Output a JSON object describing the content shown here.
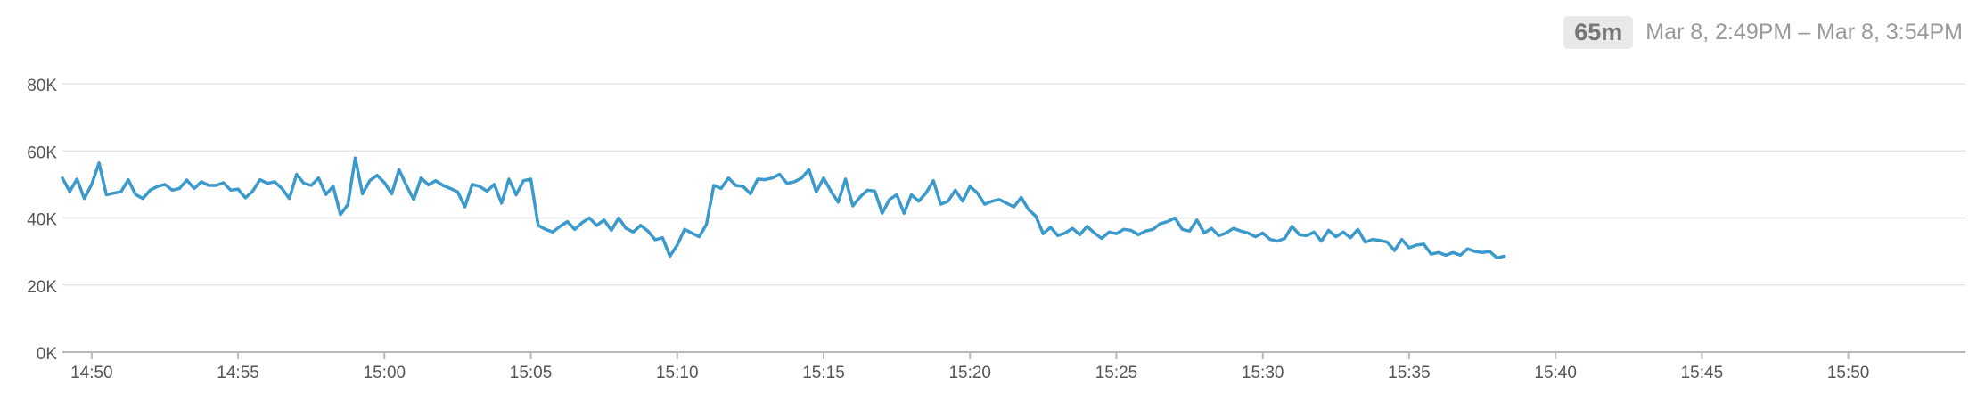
{
  "header": {
    "duration_label": "65m",
    "range_label": "Mar 8, 2:49PM – Mar 8, 3:54PM"
  },
  "colors": {
    "line": "#3b9acb",
    "grid": "#e4e4e4",
    "axis": "#b8b8b8",
    "text": "#555555"
  },
  "chart_data": {
    "type": "line",
    "title": "",
    "xlabel": "",
    "ylabel": "",
    "x_ticks": [
      "14:50",
      "14:55",
      "15:00",
      "15:05",
      "15:10",
      "15:15",
      "15:20",
      "15:25",
      "15:30",
      "15:35",
      "15:40",
      "15:45",
      "15:50"
    ],
    "y_ticks": [
      "0K",
      "20K",
      "40K",
      "60K",
      "80K"
    ],
    "ylim": [
      0,
      80000
    ],
    "x_range_minutes": [
      "14:49",
      "15:54"
    ],
    "grid": true,
    "legend": "none",
    "series": [
      {
        "points": [
          [
            "14:49:00",
            51900
          ],
          [
            "14:49:15",
            47900
          ],
          [
            "14:49:30",
            51600
          ],
          [
            "14:49:45",
            45800
          ],
          [
            "14:50:00",
            50000
          ],
          [
            "14:50:15",
            56400
          ],
          [
            "14:50:30",
            46900
          ],
          [
            "14:50:45",
            47400
          ],
          [
            "14:51:00",
            47800
          ],
          [
            "14:51:15",
            51400
          ],
          [
            "14:51:30",
            47000
          ],
          [
            "14:51:45",
            45800
          ],
          [
            "14:52:00",
            48300
          ],
          [
            "14:52:15",
            49400
          ],
          [
            "14:52:30",
            50000
          ],
          [
            "14:52:45",
            48300
          ],
          [
            "14:53:00",
            48800
          ],
          [
            "14:53:15",
            51300
          ],
          [
            "14:53:30",
            48800
          ],
          [
            "14:53:45",
            50800
          ],
          [
            "14:54:00",
            49700
          ],
          [
            "14:54:15",
            49700
          ],
          [
            "14:54:30",
            50500
          ],
          [
            "14:54:45",
            48300
          ],
          [
            "14:55:00",
            48600
          ],
          [
            "14:55:15",
            46000
          ],
          [
            "14:55:30",
            48000
          ],
          [
            "14:55:45",
            51400
          ],
          [
            "14:56:00",
            50300
          ],
          [
            "14:56:15",
            50800
          ],
          [
            "14:56:30",
            48800
          ],
          [
            "14:56:45",
            45800
          ],
          [
            "14:57:00",
            53000
          ],
          [
            "14:57:15",
            50300
          ],
          [
            "14:57:30",
            49700
          ],
          [
            "14:57:45",
            51900
          ],
          [
            "14:58:00",
            47000
          ],
          [
            "14:58:15",
            49400
          ],
          [
            "14:58:30",
            41000
          ],
          [
            "14:58:45",
            44000
          ],
          [
            "14:59:00",
            57900
          ],
          [
            "14:59:15",
            47200
          ],
          [
            "14:59:30",
            51100
          ],
          [
            "14:59:45",
            52700
          ],
          [
            "15:00:00",
            50500
          ],
          [
            "15:00:15",
            47200
          ],
          [
            "15:00:30",
            54400
          ],
          [
            "15:00:45",
            49700
          ],
          [
            "15:01:00",
            45500
          ],
          [
            "15:01:15",
            51900
          ],
          [
            "15:01:30",
            49900
          ],
          [
            "15:01:45",
            51100
          ],
          [
            "15:02:00",
            49700
          ],
          [
            "15:02:15",
            48800
          ],
          [
            "15:02:30",
            47800
          ],
          [
            "15:02:45",
            43300
          ],
          [
            "15:03:00",
            50000
          ],
          [
            "15:03:15",
            49400
          ],
          [
            "15:03:30",
            48000
          ],
          [
            "15:03:45",
            50000
          ],
          [
            "15:04:00",
            44400
          ],
          [
            "15:04:15",
            51600
          ],
          [
            "15:04:30",
            46900
          ],
          [
            "15:04:45",
            51100
          ],
          [
            "15:05:00",
            51600
          ],
          [
            "15:05:15",
            37800
          ],
          [
            "15:05:30",
            36600
          ],
          [
            "15:05:45",
            35800
          ],
          [
            "15:06:00",
            37500
          ],
          [
            "15:06:15",
            38900
          ],
          [
            "15:06:30",
            36600
          ],
          [
            "15:06:45",
            38600
          ],
          [
            "15:07:00",
            40000
          ],
          [
            "15:07:15",
            37800
          ],
          [
            "15:07:30",
            39400
          ],
          [
            "15:07:45",
            36300
          ],
          [
            "15:08:00",
            40000
          ],
          [
            "15:08:15",
            36900
          ],
          [
            "15:08:30",
            35800
          ],
          [
            "15:08:45",
            37800
          ],
          [
            "15:09:00",
            36100
          ],
          [
            "15:09:15",
            33500
          ],
          [
            "15:09:30",
            34100
          ],
          [
            "15:09:45",
            28600
          ],
          [
            "15:10:00",
            31900
          ],
          [
            "15:10:15",
            36600
          ],
          [
            "15:10:30",
            35500
          ],
          [
            "15:10:45",
            34400
          ],
          [
            "15:11:00",
            38100
          ],
          [
            "15:11:15",
            49700
          ],
          [
            "15:11:30",
            48800
          ],
          [
            "15:11:45",
            51900
          ],
          [
            "15:12:00",
            49700
          ],
          [
            "15:12:15",
            49400
          ],
          [
            "15:12:30",
            47200
          ],
          [
            "15:12:45",
            51600
          ],
          [
            "15:13:00",
            51400
          ],
          [
            "15:13:15",
            51900
          ],
          [
            "15:13:30",
            53000
          ],
          [
            "15:13:45",
            50300
          ],
          [
            "15:14:00",
            50800
          ],
          [
            "15:14:15",
            51900
          ],
          [
            "15:14:30",
            54400
          ],
          [
            "15:14:45",
            47800
          ],
          [
            "15:15:00",
            51900
          ],
          [
            "15:15:15",
            48000
          ],
          [
            "15:15:30",
            44700
          ],
          [
            "15:15:45",
            51600
          ],
          [
            "15:16:00",
            43600
          ],
          [
            "15:16:15",
            46300
          ],
          [
            "15:16:30",
            48300
          ],
          [
            "15:16:45",
            48000
          ],
          [
            "15:17:00",
            41400
          ],
          [
            "15:17:15",
            45500
          ],
          [
            "15:17:30",
            46900
          ],
          [
            "15:17:45",
            41400
          ],
          [
            "15:18:00",
            46900
          ],
          [
            "15:18:15",
            45000
          ],
          [
            "15:18:30",
            47500
          ],
          [
            "15:18:45",
            51100
          ],
          [
            "15:19:00",
            44100
          ],
          [
            "15:19:15",
            45000
          ],
          [
            "15:19:30",
            48300
          ],
          [
            "15:19:45",
            45000
          ],
          [
            "15:20:00",
            49400
          ],
          [
            "15:20:15",
            47500
          ],
          [
            "15:20:30",
            44100
          ],
          [
            "15:20:45",
            45000
          ],
          [
            "15:21:00",
            45500
          ],
          [
            "15:21:15",
            44400
          ],
          [
            "15:21:30",
            43300
          ],
          [
            "15:21:45",
            46100
          ],
          [
            "15:22:00",
            42500
          ],
          [
            "15:22:15",
            40500
          ],
          [
            "15:22:30",
            35300
          ],
          [
            "15:22:45",
            37200
          ],
          [
            "15:23:00",
            34700
          ],
          [
            "15:23:15",
            35500
          ],
          [
            "15:23:30",
            36900
          ],
          [
            "15:23:45",
            35000
          ],
          [
            "15:24:00",
            37500
          ],
          [
            "15:24:15",
            35500
          ],
          [
            "15:24:30",
            33900
          ],
          [
            "15:24:45",
            35800
          ],
          [
            "15:25:00",
            35300
          ],
          [
            "15:25:15",
            36600
          ],
          [
            "15:25:30",
            36300
          ],
          [
            "15:25:45",
            35000
          ],
          [
            "15:26:00",
            36100
          ],
          [
            "15:26:15",
            36600
          ],
          [
            "15:26:30",
            38300
          ],
          [
            "15:26:45",
            38900
          ],
          [
            "15:27:00",
            40000
          ],
          [
            "15:27:15",
            36600
          ],
          [
            "15:27:30",
            36100
          ],
          [
            "15:27:45",
            39400
          ],
          [
            "15:28:00",
            35500
          ],
          [
            "15:28:15",
            36900
          ],
          [
            "15:28:30",
            34700
          ],
          [
            "15:28:45",
            35500
          ],
          [
            "15:29:00",
            36900
          ],
          [
            "15:29:15",
            36100
          ],
          [
            "15:29:30",
            35500
          ],
          [
            "15:29:45",
            34400
          ],
          [
            "15:30:00",
            35500
          ],
          [
            "15:30:15",
            33600
          ],
          [
            "15:30:30",
            33100
          ],
          [
            "15:30:45",
            33900
          ],
          [
            "15:31:00",
            37500
          ],
          [
            "15:31:15",
            35000
          ],
          [
            "15:31:30",
            34700
          ],
          [
            "15:31:45",
            35800
          ],
          [
            "15:32:00",
            33100
          ],
          [
            "15:32:15",
            36300
          ],
          [
            "15:32:30",
            34400
          ],
          [
            "15:32:45",
            35800
          ],
          [
            "15:33:00",
            34100
          ],
          [
            "15:33:15",
            36600
          ],
          [
            "15:33:30",
            32800
          ],
          [
            "15:33:45",
            33600
          ],
          [
            "15:34:00",
            33300
          ],
          [
            "15:34:15",
            32800
          ],
          [
            "15:34:30",
            30300
          ],
          [
            "15:34:45",
            33600
          ],
          [
            "15:35:00",
            31100
          ],
          [
            "15:35:15",
            31900
          ],
          [
            "15:35:30",
            32200
          ],
          [
            "15:35:45",
            29200
          ],
          [
            "15:36:00",
            29700
          ],
          [
            "15:36:15",
            28900
          ],
          [
            "15:36:30",
            29700
          ],
          [
            "15:36:45",
            28900
          ],
          [
            "15:37:00",
            30800
          ],
          [
            "15:37:15",
            30000
          ],
          [
            "15:37:30",
            29700
          ],
          [
            "15:37:45",
            30000
          ],
          [
            "15:38:00",
            28100
          ],
          [
            "15:38:15",
            28600
          ]
        ]
      }
    ]
  }
}
